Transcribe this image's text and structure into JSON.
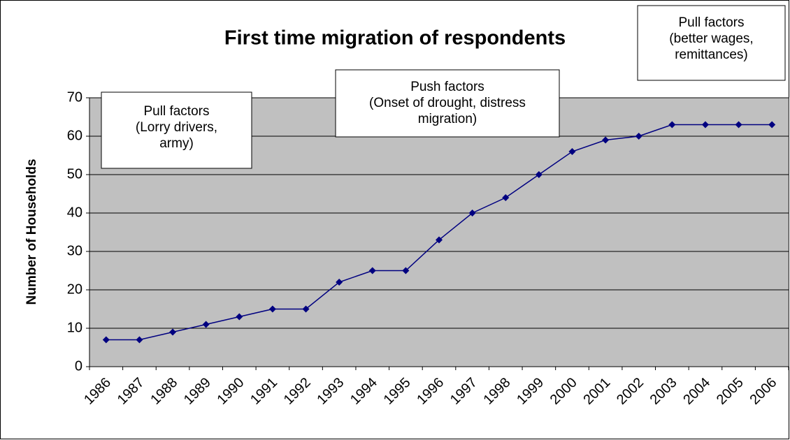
{
  "chart_data": {
    "type": "line",
    "title": "First time migration of respondents",
    "y_label": "Number of Households",
    "categories": [
      "1986",
      "1987",
      "1988",
      "1989",
      "1990",
      "1991",
      "1992",
      "1993",
      "1994",
      "1995",
      "1996",
      "1997",
      "1998",
      "1999",
      "2000",
      "2001",
      "2002",
      "2003",
      "2004",
      "2005",
      "2006"
    ],
    "values": [
      7,
      7,
      9,
      11,
      13,
      15,
      15,
      22,
      25,
      25,
      33,
      40,
      44,
      50,
      56,
      59,
      60,
      63,
      63,
      63,
      63
    ],
    "color": "#000080",
    "ylim": [
      0,
      70
    ],
    "yticks": [
      0,
      10,
      20,
      30,
      40,
      50,
      60,
      70
    ],
    "grid": true,
    "annotations": [
      {
        "lines": [
          "Pull factors",
          "(Lorry drivers,",
          "army)"
        ]
      },
      {
        "lines": [
          "Push factors",
          "(Onset of drought, distress",
          "migration)"
        ]
      },
      {
        "lines": [
          "Pull factors",
          "(better wages,",
          "remittances)"
        ]
      }
    ]
  }
}
